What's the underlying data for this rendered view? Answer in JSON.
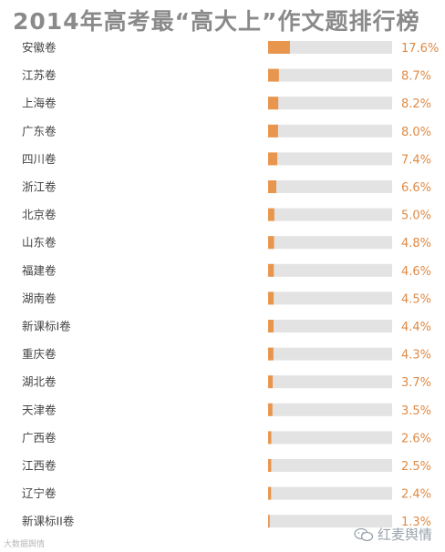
{
  "chart_data": {
    "type": "bar",
    "orientation": "horizontal",
    "title": "2014年高考最“高大上”作文题排行榜",
    "categories": [
      "安徽卷",
      "江苏卷",
      "上海卷",
      "广东卷",
      "四川卷",
      "浙江卷",
      "北京卷",
      "山东卷",
      "福建卷",
      "湖南卷",
      "新课标I卷",
      "重庆卷",
      "湖北卷",
      "天津卷",
      "广西卷",
      "江西卷",
      "辽宁卷",
      "新课标II卷"
    ],
    "values": [
      17.6,
      8.7,
      8.2,
      8.0,
      7.4,
      6.6,
      5.0,
      4.8,
      4.6,
      4.5,
      4.4,
      4.3,
      3.7,
      3.5,
      2.6,
      2.5,
      2.4,
      1.3
    ],
    "value_labels": [
      "17.6%",
      "8.7%",
      "8.2%",
      "8.0%",
      "7.4%",
      "6.6%",
      "5.0%",
      "4.8%",
      "4.6%",
      "4.5%",
      "4.4%",
      "4.3%",
      "3.7%",
      "3.5%",
      "2.6%",
      "2.5%",
      "2.4%",
      "1.3%"
    ],
    "xlim": [
      0,
      100
    ],
    "grid": false,
    "colors": {
      "bar": "#e8954d",
      "track": "#e3e3e3",
      "value_text": "#e08a45",
      "title": "#8a8a8a"
    }
  },
  "footer": {
    "source": "大数据舆情",
    "watermark": "红麦舆情"
  }
}
